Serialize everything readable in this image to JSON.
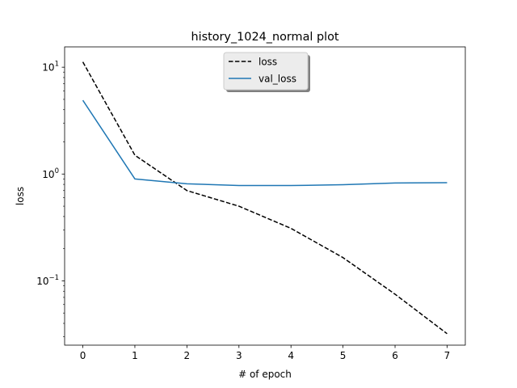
{
  "chart_data": {
    "type": "line",
    "title": "history_1024_normal plot",
    "xlabel": "# of epoch",
    "ylabel": "loss",
    "x": [
      0,
      1,
      2,
      3,
      4,
      5,
      6,
      7
    ],
    "xlim": [
      -0.35,
      7.35
    ],
    "ylim": [
      0.025,
      15.5
    ],
    "yscale": "log",
    "x_ticks": [
      "0",
      "1",
      "2",
      "3",
      "4",
      "5",
      "6",
      "7"
    ],
    "y_ticks": [
      {
        "value": 0.1,
        "base": "10",
        "exp": "−1"
      },
      {
        "value": 1,
        "base": "10",
        "exp": "0"
      },
      {
        "value": 10,
        "base": "10",
        "exp": "1"
      }
    ],
    "grid": false,
    "legend_position": "upper center",
    "series": [
      {
        "name": "loss",
        "color": "#000000",
        "style": "dashed",
        "values": [
          11.2,
          1.5,
          0.7,
          0.5,
          0.31,
          0.165,
          0.075,
          0.032
        ]
      },
      {
        "name": "val_loss",
        "color": "#1f77b4",
        "style": "solid",
        "values": [
          4.9,
          0.9,
          0.81,
          0.78,
          0.78,
          0.795,
          0.825,
          0.83
        ]
      }
    ]
  }
}
